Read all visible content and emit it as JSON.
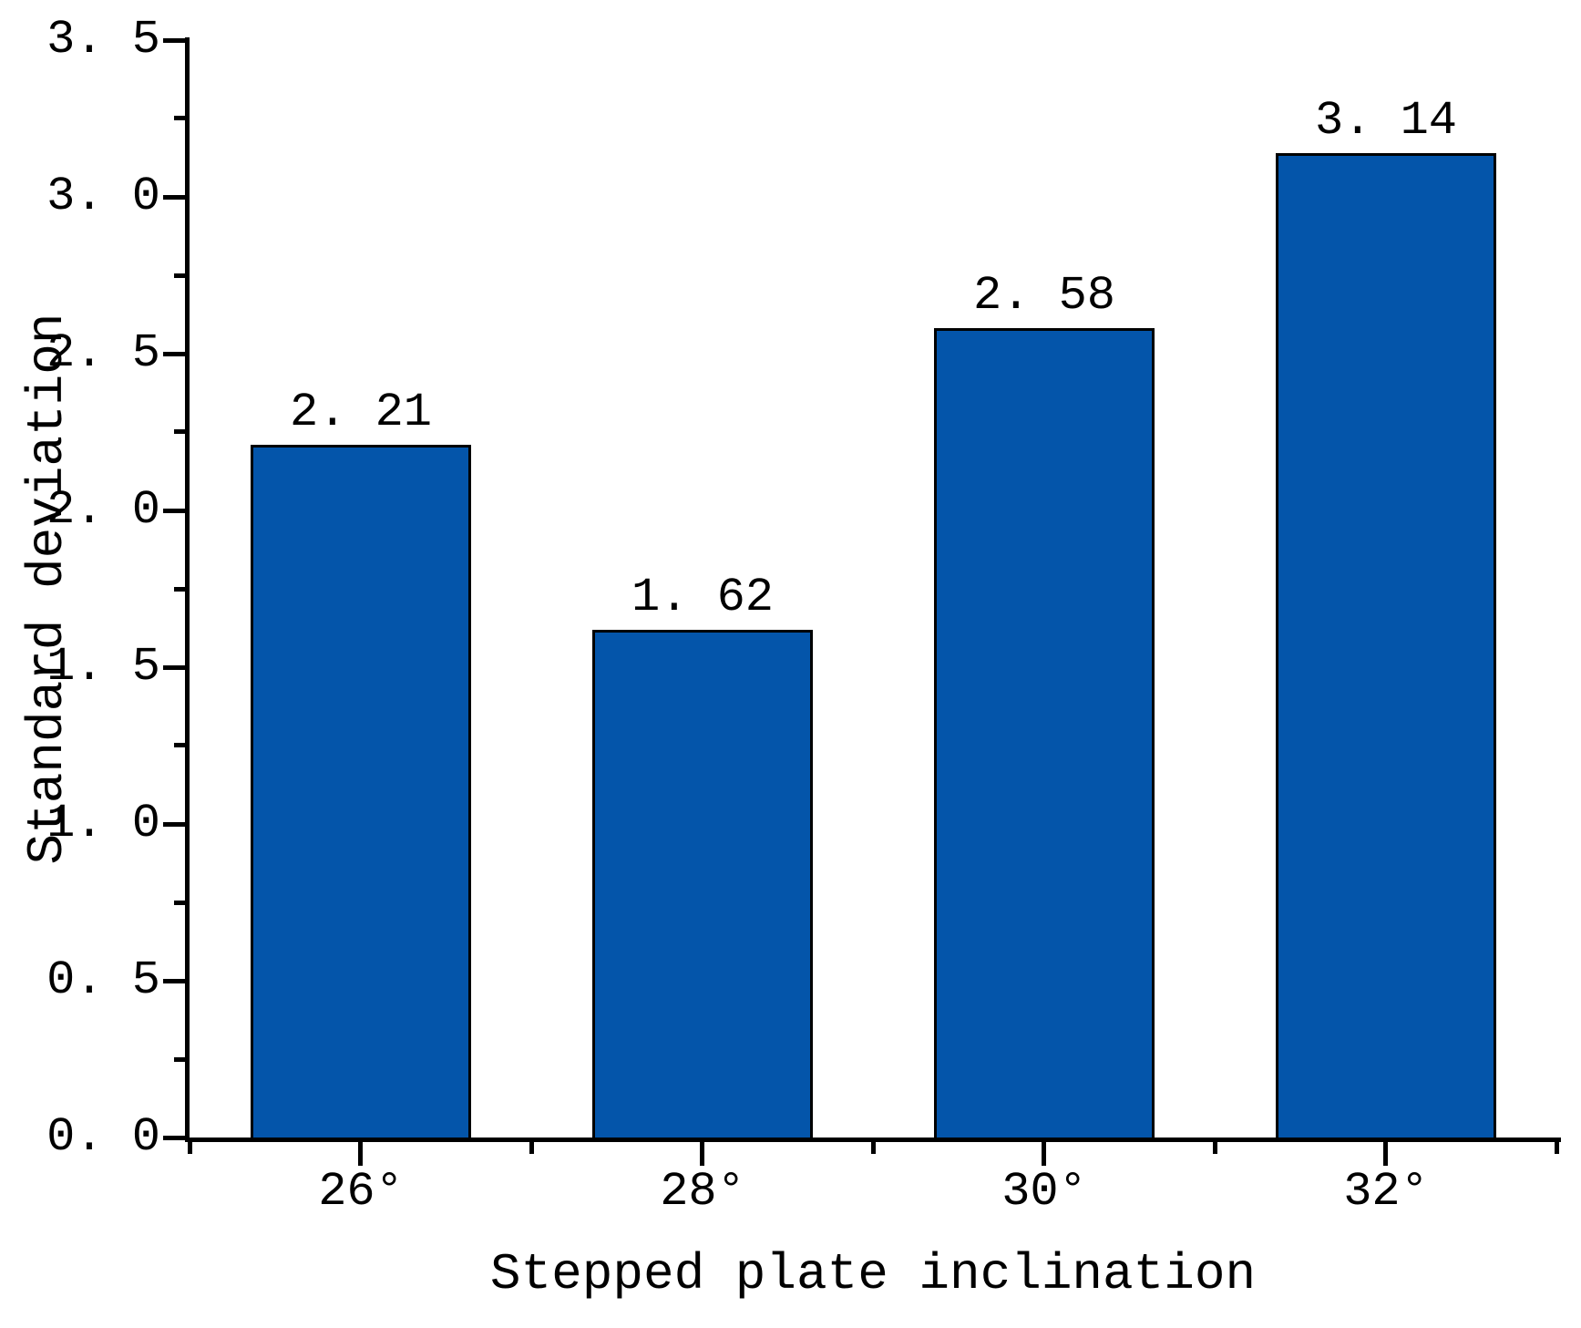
{
  "chart_data": {
    "type": "bar",
    "categories": [
      "26°",
      "28°",
      "30°",
      "32°"
    ],
    "values": [
      2.21,
      1.62,
      2.58,
      3.14
    ],
    "bar_value_labels": [
      "2. 21",
      "1. 62",
      "2. 58",
      "3. 14"
    ],
    "xlabel": "Stepped plate inclination",
    "ylabel": "Standard deviation",
    "ylim": [
      0,
      3.5
    ],
    "ytick_step": 0.5,
    "ytick_minor_step": 0.25,
    "ytick_labels": [
      "0. 0",
      "0. 5",
      "1. 0",
      "1. 5",
      "2. 0",
      "2. 5",
      "3. 0",
      "3. 5"
    ],
    "grid": false,
    "legend": "none",
    "bar_width_fraction": 0.645,
    "colors": {
      "bar_fill": "#0455AA",
      "bar_edge": "#000000",
      "axis": "#000000",
      "text": "#000000",
      "background": "#ffffff"
    }
  }
}
